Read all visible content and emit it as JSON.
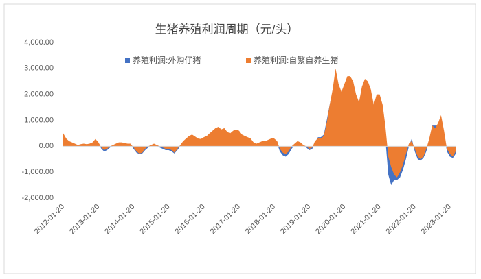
{
  "chart_data": {
    "type": "area",
    "title": "生猪养殖利润周期（元/头）",
    "x": [
      "2012-01-20",
      "2012-02-20",
      "2012-03-20",
      "2012-04-20",
      "2012-05-20",
      "2012-06-20",
      "2012-07-20",
      "2012-08-20",
      "2012-09-20",
      "2012-10-20",
      "2012-11-20",
      "2012-12-20",
      "2013-01-20",
      "2013-02-20",
      "2013-03-20",
      "2013-04-20",
      "2013-05-20",
      "2013-06-20",
      "2013-07-20",
      "2013-08-20",
      "2013-09-20",
      "2013-10-20",
      "2013-11-20",
      "2013-12-20",
      "2014-01-20",
      "2014-02-20",
      "2014-03-20",
      "2014-04-20",
      "2014-05-20",
      "2014-06-20",
      "2014-07-20",
      "2014-08-20",
      "2014-09-20",
      "2014-10-20",
      "2014-11-20",
      "2014-12-20",
      "2015-01-20",
      "2015-02-20",
      "2015-03-20",
      "2015-04-20",
      "2015-05-20",
      "2015-06-20",
      "2015-07-20",
      "2015-08-20",
      "2015-09-20",
      "2015-10-20",
      "2015-11-20",
      "2015-12-20",
      "2016-01-20",
      "2016-02-20",
      "2016-03-20",
      "2016-04-20",
      "2016-05-20",
      "2016-06-20",
      "2016-07-20",
      "2016-08-20",
      "2016-09-20",
      "2016-10-20",
      "2016-11-20",
      "2016-12-20",
      "2017-01-20",
      "2017-02-20",
      "2017-03-20",
      "2017-04-20",
      "2017-05-20",
      "2017-06-20",
      "2017-07-20",
      "2017-08-20",
      "2017-09-20",
      "2017-10-20",
      "2017-11-20",
      "2017-12-20",
      "2018-01-20",
      "2018-02-20",
      "2018-03-20",
      "2018-04-20",
      "2018-05-20",
      "2018-06-20",
      "2018-07-20",
      "2018-08-20",
      "2018-09-20",
      "2018-10-20",
      "2018-11-20",
      "2018-12-20",
      "2019-01-20",
      "2019-02-20",
      "2019-03-20",
      "2019-04-20",
      "2019-05-20",
      "2019-06-20",
      "2019-07-20",
      "2019-08-20",
      "2019-09-20",
      "2019-10-20",
      "2019-11-20",
      "2019-12-20",
      "2020-01-20",
      "2020-02-20",
      "2020-03-20",
      "2020-04-20",
      "2020-05-20",
      "2020-06-20",
      "2020-07-20",
      "2020-08-20",
      "2020-09-20",
      "2020-10-20",
      "2020-11-20",
      "2020-12-20",
      "2021-01-20",
      "2021-02-20",
      "2021-03-20",
      "2021-04-20",
      "2021-05-20",
      "2021-06-20",
      "2021-07-20",
      "2021-08-20",
      "2021-09-20",
      "2021-10-20",
      "2021-11-20",
      "2021-12-20",
      "2022-01-20",
      "2022-02-20",
      "2022-03-20",
      "2022-04-20",
      "2022-05-20",
      "2022-06-20",
      "2022-07-20",
      "2022-08-20",
      "2022-09-20",
      "2022-10-20",
      "2022-11-20",
      "2022-12-20",
      "2023-01-20",
      "2023-02-20",
      "2023-03-20"
    ],
    "series": [
      {
        "name": "养殖利润:外购仔猪",
        "color": "#4472c4",
        "values": [
          450,
          250,
          150,
          100,
          50,
          0,
          30,
          50,
          30,
          50,
          100,
          230,
          100,
          -100,
          -200,
          -150,
          -50,
          0,
          50,
          100,
          100,
          80,
          50,
          50,
          -100,
          -250,
          -300,
          -280,
          -150,
          -50,
          0,
          50,
          0,
          -50,
          -100,
          -150,
          -150,
          -200,
          -280,
          -150,
          0,
          150,
          250,
          350,
          400,
          330,
          250,
          230,
          300,
          350,
          450,
          550,
          650,
          700,
          600,
          650,
          500,
          450,
          550,
          600,
          550,
          400,
          350,
          300,
          250,
          100,
          50,
          100,
          150,
          150,
          200,
          250,
          250,
          100,
          -200,
          -350,
          -400,
          -300,
          -100,
          50,
          150,
          100,
          0,
          -50,
          -150,
          -100,
          150,
          350,
          350,
          450,
          1000,
          1600,
          2100,
          2800,
          2300,
          2000,
          2300,
          2600,
          2600,
          2400,
          1900,
          1600,
          2200,
          2500,
          2400,
          2100,
          1500,
          1900,
          1800,
          1300,
          300,
          -1100,
          -1500,
          -1300,
          -1300,
          -1200,
          -900,
          -500,
          0,
          300,
          -200,
          -500,
          -550,
          -450,
          -200,
          200,
          800,
          800,
          800,
          1100,
          500,
          -200,
          -400,
          -450,
          -300
        ]
      },
      {
        "name": "养殖利润:自繁自养生猪",
        "color": "#ed7d31",
        "values": [
          500,
          300,
          200,
          150,
          100,
          50,
          80,
          100,
          80,
          100,
          150,
          280,
          150,
          -50,
          -150,
          -100,
          0,
          50,
          100,
          150,
          150,
          120,
          100,
          100,
          -50,
          -200,
          -280,
          -250,
          -100,
          0,
          50,
          100,
          50,
          0,
          -50,
          -100,
          -100,
          -150,
          -250,
          -100,
          50,
          200,
          300,
          400,
          450,
          380,
          300,
          280,
          350,
          400,
          500,
          600,
          700,
          750,
          650,
          700,
          550,
          500,
          600,
          650,
          600,
          450,
          400,
          350,
          300,
          150,
          100,
          150,
          200,
          200,
          250,
          300,
          300,
          200,
          -100,
          -250,
          -300,
          -200,
          0,
          100,
          200,
          150,
          50,
          0,
          -100,
          -50,
          200,
          300,
          300,
          400,
          900,
          1600,
          2200,
          3000,
          2400,
          2100,
          2400,
          2700,
          2700,
          2500,
          2000,
          1700,
          2300,
          2600,
          2500,
          2200,
          1600,
          2000,
          2000,
          1600,
          800,
          -400,
          -800,
          -1100,
          -1200,
          -1000,
          -700,
          -300,
          100,
          200,
          -100,
          -400,
          -500,
          -400,
          -100,
          300,
          800,
          700,
          900,
          1200,
          600,
          -100,
          -300,
          -400,
          -200
        ]
      }
    ],
    "xlim": [
      "2012-01-20",
      "2023-03-20"
    ],
    "xticks": [
      "2012-01-20",
      "2013-01-20",
      "2014-01-20",
      "2015-01-20",
      "2016-01-20",
      "2017-01-20",
      "2018-01-20",
      "2019-01-20",
      "2020-01-20",
      "2021-01-20",
      "2022-01-20",
      "2023-01-20"
    ],
    "ylim": [
      -2000,
      4000
    ],
    "yticks": [
      {
        "value": -2000,
        "label": "-2,000.00"
      },
      {
        "value": -1000,
        "label": "-1,000.00"
      },
      {
        "value": 0,
        "label": "0.00"
      },
      {
        "value": 1000,
        "label": "1,000.00"
      },
      {
        "value": 2000,
        "label": "2,000.00"
      },
      {
        "value": 3000,
        "label": "3,000.00"
      },
      {
        "value": 4000,
        "label": "4,000.00"
      }
    ],
    "grid": false,
    "legend": "top"
  }
}
